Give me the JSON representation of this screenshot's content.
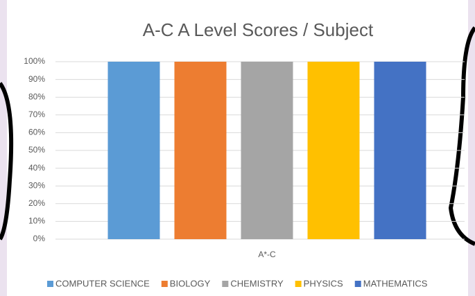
{
  "chart_data": {
    "type": "bar",
    "title": "A-C A Level Scores / Subject",
    "categories": [
      "A*-C"
    ],
    "series": [
      {
        "name": "COMPUTER SCIENCE",
        "color": "#5b9bd5",
        "values": [
          100
        ]
      },
      {
        "name": "BIOLOGY",
        "color": "#ed7d31",
        "values": [
          100
        ]
      },
      {
        "name": "CHEMISTRY",
        "color": "#a5a5a5",
        "values": [
          100
        ]
      },
      {
        "name": "PHYSICS",
        "color": "#ffc000",
        "values": [
          100
        ]
      },
      {
        "name": "MATHEMATICS",
        "color": "#4472c4",
        "values": [
          100
        ]
      }
    ],
    "ylim": [
      0,
      100
    ],
    "yticks": [
      {
        "value": 0,
        "label": "0%"
      },
      {
        "value": 10,
        "label": "10%"
      },
      {
        "value": 20,
        "label": "20%"
      },
      {
        "value": 30,
        "label": "30%"
      },
      {
        "value": 40,
        "label": "40%"
      },
      {
        "value": 50,
        "label": "50%"
      },
      {
        "value": 60,
        "label": "60%"
      },
      {
        "value": 70,
        "label": "70%"
      },
      {
        "value": 80,
        "label": "80%"
      },
      {
        "value": 90,
        "label": "90%"
      },
      {
        "value": 100,
        "label": "100%"
      }
    ],
    "grid": true,
    "legend": "bottom"
  }
}
